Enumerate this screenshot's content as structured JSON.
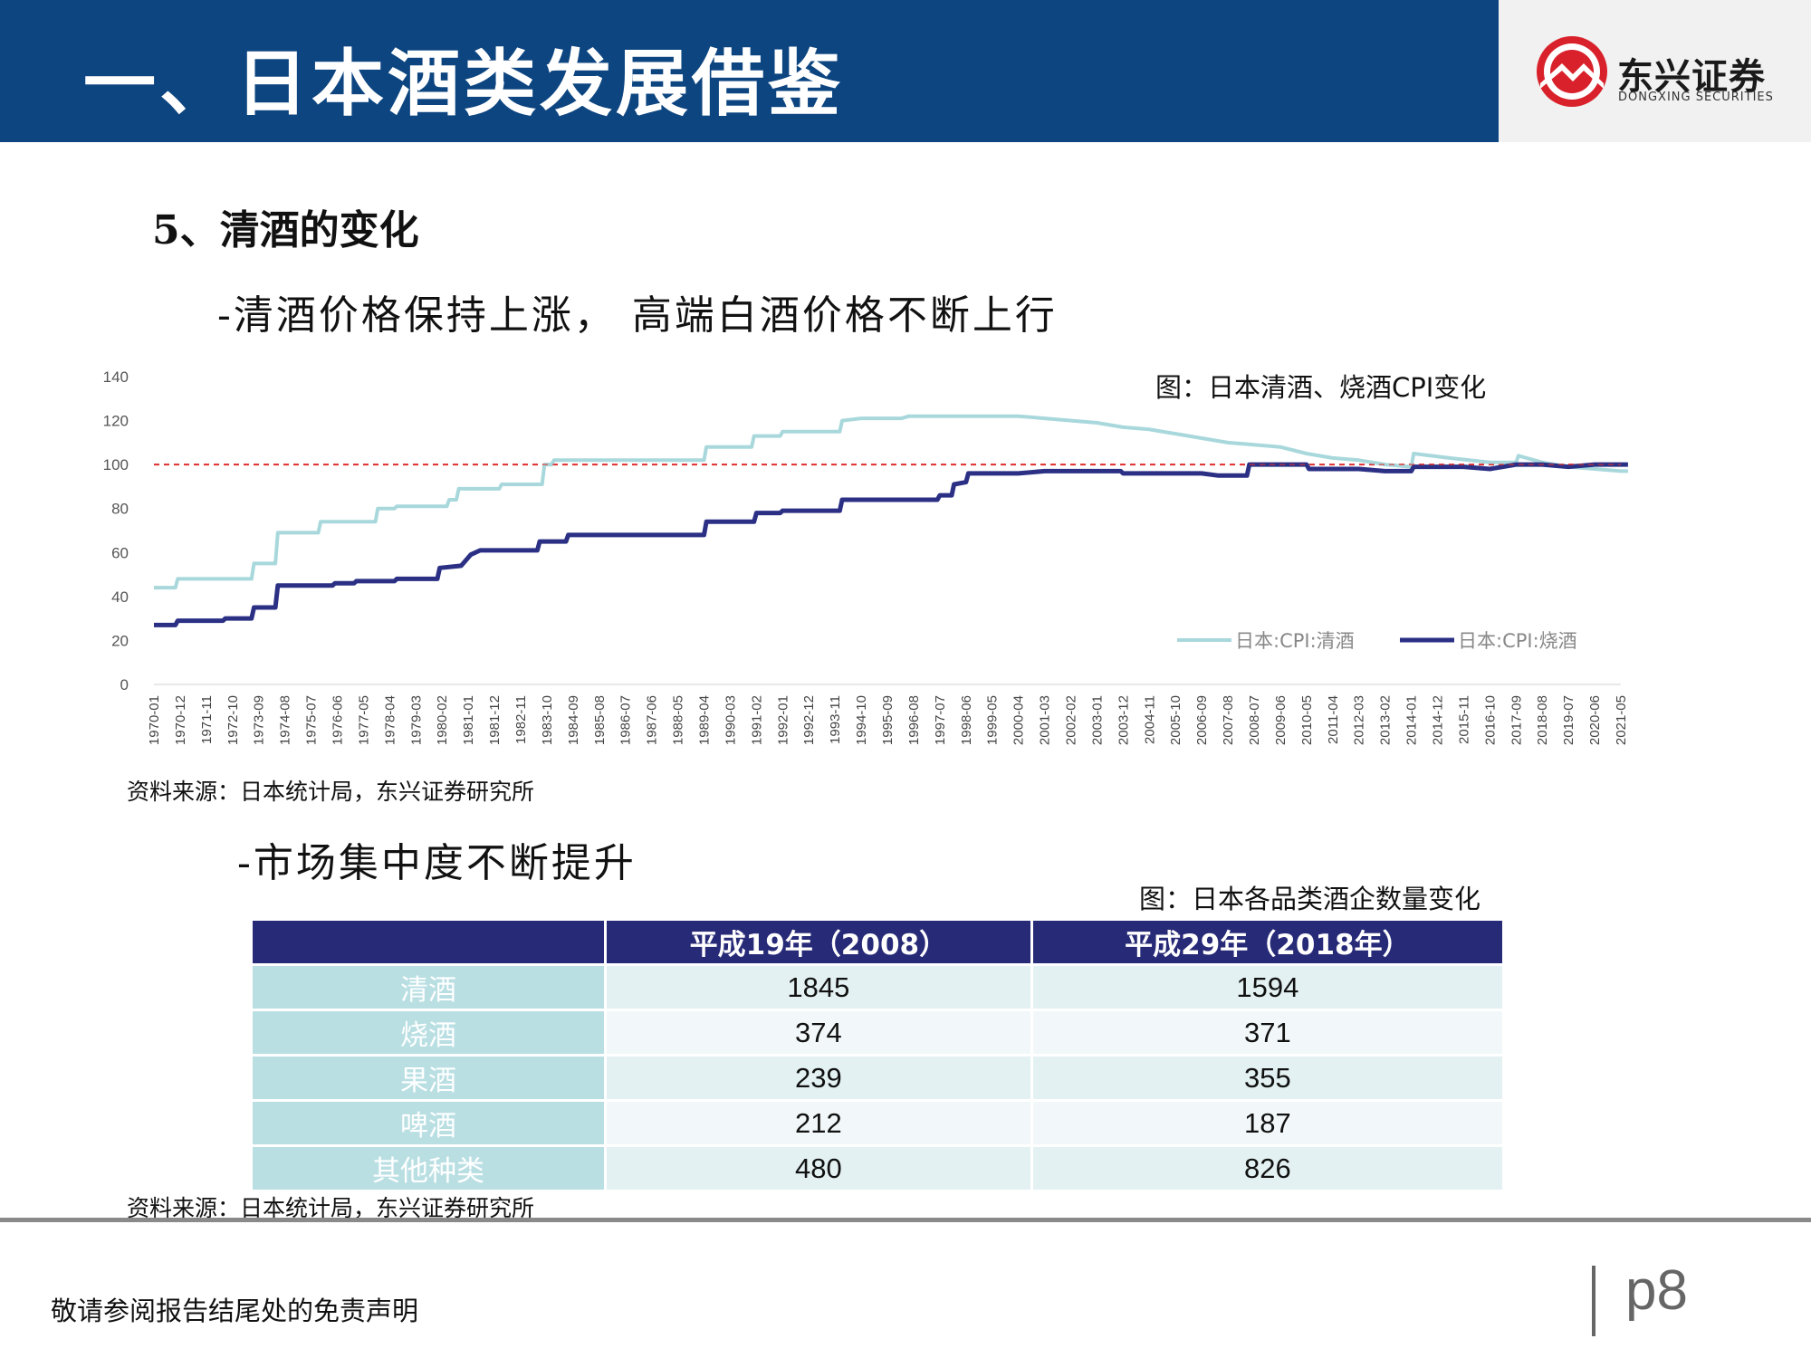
{
  "header": {
    "title": "一、日本酒类发展借鉴",
    "logo_name": "东兴证券",
    "logo_subtitle": "DONGXING SECURITIES"
  },
  "section": {
    "title": "5、清酒的变化",
    "bullet1": "-清酒价格保持上涨， 高端白酒价格不断上行",
    "bullet2": "-市场集中度不断提升"
  },
  "figure1": {
    "caption": "图：日本清酒、烧酒CPI变化",
    "source": "资料来源：日本统计局，东兴证券研究所"
  },
  "chart_data": {
    "type": "line",
    "title": "图：日本清酒、烧酒CPI变化",
    "ylim": [
      0,
      140
    ],
    "yticks": [
      0,
      20,
      40,
      60,
      80,
      100,
      120,
      140
    ],
    "x_tick_labels": [
      "1970-01",
      "1970-12",
      "1971-11",
      "1972-10",
      "1973-09",
      "1974-08",
      "1975-07",
      "1976-06",
      "1977-05",
      "1978-04",
      "1979-03",
      "1980-02",
      "1981-01",
      "1981-12",
      "1982-11",
      "1983-10",
      "1984-09",
      "1985-08",
      "1986-07",
      "1987-06",
      "1988-05",
      "1989-04",
      "1990-03",
      "1991-02",
      "1992-01",
      "1992-12",
      "1993-11",
      "1994-10",
      "1995-09",
      "1996-08",
      "1997-07",
      "1998-06",
      "1999-05",
      "2000-04",
      "2001-03",
      "2002-02",
      "2003-01",
      "2003-12",
      "2004-11",
      "2005-10",
      "2006-09",
      "2007-08",
      "2008-07",
      "2009-06",
      "2010-05",
      "2011-04",
      "2012-03",
      "2013-02",
      "2014-01",
      "2014-12",
      "2015-11",
      "2016-10",
      "2017-09",
      "2018-08",
      "2019-07",
      "2020-06",
      "2021-05"
    ],
    "reference_line": {
      "value": 100,
      "color": "#e03030",
      "style": "dashed"
    },
    "legend_position": "bottom-right",
    "series": [
      {
        "name": "日本:CPI:清酒",
        "color": "#a8d8dc",
        "points": [
          [
            "1970-01",
            44
          ],
          [
            "1970-10",
            44
          ],
          [
            "1970-11",
            48
          ],
          [
            "1973-06",
            48
          ],
          [
            "1973-07",
            55
          ],
          [
            "1974-04",
            55
          ],
          [
            "1974-05",
            69
          ],
          [
            "1975-10",
            69
          ],
          [
            "1975-11",
            74
          ],
          [
            "1977-10",
            74
          ],
          [
            "1977-11",
            80
          ],
          [
            "1978-06",
            80
          ],
          [
            "1978-07",
            81
          ],
          [
            "1980-04",
            81
          ],
          [
            "1980-05",
            84
          ],
          [
            "1980-08",
            84
          ],
          [
            "1980-09",
            89
          ],
          [
            "1982-02",
            89
          ],
          [
            "1982-03",
            91
          ],
          [
            "1983-08",
            91
          ],
          [
            "1983-09",
            100
          ],
          [
            "1983-12",
            100
          ],
          [
            "1984-01",
            102
          ],
          [
            "1989-04",
            102
          ],
          [
            "1989-05",
            108
          ],
          [
            "1990-12",
            108
          ],
          [
            "1991-01",
            113
          ],
          [
            "1991-12",
            113
          ],
          [
            "1992-01",
            115
          ],
          [
            "1994-01",
            115
          ],
          [
            "1994-02",
            120
          ],
          [
            "1994-10",
            121
          ],
          [
            "1996-03",
            121
          ],
          [
            "1996-06",
            122
          ],
          [
            "1997-12",
            122
          ],
          [
            "1998-06",
            122
          ],
          [
            "2000-04",
            122
          ],
          [
            "2001-03",
            121
          ],
          [
            "2003-01",
            119
          ],
          [
            "2003-12",
            117
          ],
          [
            "2004-11",
            116
          ],
          [
            "2005-10",
            114
          ],
          [
            "2006-09",
            112
          ],
          [
            "2007-08",
            110
          ],
          [
            "2008-07",
            109
          ],
          [
            "2009-06",
            108
          ],
          [
            "2010-05",
            105
          ],
          [
            "2011-04",
            103
          ],
          [
            "2012-03",
            102
          ],
          [
            "2013-02",
            100
          ],
          [
            "2014-01",
            99
          ],
          [
            "2014-02",
            105
          ],
          [
            "2015-05",
            103
          ],
          [
            "2016-10",
            101
          ],
          [
            "2017-09",
            101
          ],
          [
            "2017-10",
            104
          ],
          [
            "2018-08",
            101
          ],
          [
            "2019-07",
            99
          ],
          [
            "2020-06",
            98
          ],
          [
            "2021-05",
            97
          ],
          [
            "2021-08",
            97
          ]
        ]
      },
      {
        "name": "日本:CPI:烧酒",
        "color": "#2b3085",
        "points": [
          [
            "1970-01",
            27
          ],
          [
            "1970-10",
            27
          ],
          [
            "1970-11",
            29
          ],
          [
            "1972-06",
            29
          ],
          [
            "1972-07",
            30
          ],
          [
            "1973-06",
            30
          ],
          [
            "1973-07",
            35
          ],
          [
            "1974-04",
            35
          ],
          [
            "1974-05",
            45
          ],
          [
            "1976-04",
            45
          ],
          [
            "1976-05",
            46
          ],
          [
            "1977-01",
            46
          ],
          [
            "1977-02",
            47
          ],
          [
            "1978-06",
            47
          ],
          [
            "1978-07",
            48
          ],
          [
            "1979-12",
            48
          ],
          [
            "1980-01",
            53
          ],
          [
            "1980-10",
            54
          ],
          [
            "1981-02",
            59
          ],
          [
            "1981-06",
            61
          ],
          [
            "1983-06",
            61
          ],
          [
            "1983-07",
            65
          ],
          [
            "1984-06",
            65
          ],
          [
            "1984-07",
            68
          ],
          [
            "1989-04",
            68
          ],
          [
            "1989-05",
            74
          ],
          [
            "1991-01",
            74
          ],
          [
            "1991-02",
            78
          ],
          [
            "1991-12",
            78
          ],
          [
            "1992-01",
            79
          ],
          [
            "1994-01",
            79
          ],
          [
            "1994-02",
            84
          ],
          [
            "1997-06",
            84
          ],
          [
            "1997-07",
            86
          ],
          [
            "1997-12",
            86
          ],
          [
            "1998-01",
            91
          ],
          [
            "1998-06",
            92
          ],
          [
            "1998-07",
            96
          ],
          [
            "2000-04",
            96
          ],
          [
            "2001-03",
            97
          ],
          [
            "2003-11",
            97
          ],
          [
            "2003-12",
            96
          ],
          [
            "2006-09",
            96
          ],
          [
            "2007-04",
            95
          ],
          [
            "2008-04",
            95
          ],
          [
            "2008-05",
            100
          ],
          [
            "2010-05",
            100
          ],
          [
            "2010-06",
            98
          ],
          [
            "2012-03",
            98
          ],
          [
            "2013-02",
            97
          ],
          [
            "2014-01",
            97
          ],
          [
            "2014-02",
            99
          ],
          [
            "2015-11",
            99
          ],
          [
            "2016-10",
            98
          ],
          [
            "2017-09",
            100
          ],
          [
            "2018-08",
            100
          ],
          [
            "2019-07",
            99
          ],
          [
            "2020-06",
            100
          ],
          [
            "2021-05",
            100
          ],
          [
            "2021-08",
            100
          ]
        ]
      }
    ]
  },
  "figure2": {
    "caption": "图：日本各品类酒企数量变化",
    "source": "资料来源：日本统计局，东兴证券研究所",
    "columns": [
      "",
      "平成19年（2008）",
      "平成29年（2018年）"
    ],
    "rows": [
      {
        "label": "清酒",
        "v2008": "1845",
        "v2018": "1594"
      },
      {
        "label": "烧酒",
        "v2008": "374",
        "v2018": "371"
      },
      {
        "label": "果酒",
        "v2008": "239",
        "v2018": "355"
      },
      {
        "label": "啤酒",
        "v2008": "212",
        "v2018": "187"
      },
      {
        "label": "其他种类",
        "v2008": "480",
        "v2018": "826"
      }
    ]
  },
  "footer": {
    "disclaimer": "敬请参阅报告结尾处的免责声明",
    "page": "p8"
  }
}
